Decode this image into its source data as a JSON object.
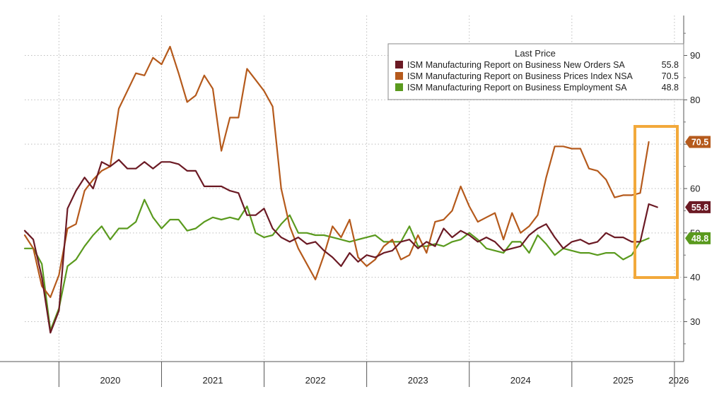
{
  "chart_data": {
    "type": "line",
    "title": "",
    "xlabel": "",
    "ylabel": "",
    "ylim": [
      21,
      99
    ],
    "yticks": [
      30,
      40,
      50,
      60,
      70,
      80,
      90
    ],
    "years": [
      "2020",
      "2021",
      "2022",
      "2023",
      "2024",
      "2025",
      "2026"
    ],
    "x_start": "2019-09",
    "legend": {
      "title": "Last Price",
      "position": "top-right"
    },
    "series": [
      {
        "name": "ISM Manufacturing Report on Business New Orders SA",
        "last_label": "55.8",
        "color": "#6b1a24",
        "values": [
          50.5,
          48.5,
          40.0,
          27.5,
          32.5,
          55.5,
          59.5,
          62.5,
          60.0,
          66.0,
          65.0,
          66.5,
          64.5,
          64.5,
          66.0,
          64.5,
          66.0,
          66.0,
          65.5,
          64.0,
          64.0,
          60.5,
          60.5,
          60.5,
          59.5,
          59.0,
          54.0,
          54.0,
          55.5,
          51.0,
          49.0,
          48.0,
          49.0,
          47.5,
          48.0,
          46.0,
          44.5,
          42.5,
          45.5,
          43.5,
          45.0,
          44.5,
          45.5,
          46.0,
          48.0,
          48.5,
          46.5,
          48.0,
          47.0,
          51.0,
          49.0,
          50.5,
          49.5,
          48.0,
          49.0,
          48.0,
          46.0,
          46.5,
          47.0,
          49.5,
          51.0,
          52.0,
          49.0,
          46.5,
          48.0,
          48.5,
          47.5,
          48.0,
          50.0,
          49.0,
          49.0,
          48.0,
          48.0,
          56.5,
          55.8
        ]
      },
      {
        "name": "ISM Manufacturing Report on Business Prices Index NSA",
        "last_label": "70.5",
        "color": "#b55a1c",
        "values": [
          49.5,
          46.5,
          38.0,
          35.5,
          40.5,
          51.0,
          52.0,
          59.5,
          62.0,
          64.0,
          65.0,
          78.0,
          82.0,
          86.0,
          85.5,
          89.5,
          88.0,
          92.0,
          86.0,
          79.5,
          81.0,
          85.5,
          82.5,
          68.5,
          76.0,
          76.0,
          87.0,
          84.5,
          82.0,
          78.5,
          60.0,
          51.5,
          46.5,
          43.0,
          39.5,
          45.0,
          51.5,
          49.0,
          53.0,
          44.5,
          42.5,
          44.0,
          47.0,
          48.5,
          44.0,
          45.0,
          49.5,
          45.5,
          52.5,
          53.0,
          55.0,
          60.5,
          56.0,
          52.5,
          53.5,
          54.5,
          48.5,
          54.5,
          50.0,
          51.5,
          54.0,
          62.5,
          69.5,
          69.5,
          69.0,
          69.0,
          64.5,
          64.0,
          62.0,
          58.0,
          58.5,
          58.5,
          59.0,
          70.5
        ]
      },
      {
        "name": "ISM Manufacturing Report on Business Employment SA",
        "last_label": "48.8",
        "color": "#5a9a1e",
        "values": [
          46.5,
          46.5,
          43.0,
          28.0,
          33.0,
          42.5,
          44.0,
          47.0,
          49.5,
          51.5,
          48.5,
          51.0,
          51.0,
          52.5,
          57.5,
          53.5,
          51.0,
          53.0,
          53.0,
          50.5,
          51.0,
          52.5,
          53.5,
          53.0,
          53.5,
          53.0,
          56.0,
          50.0,
          49.0,
          49.5,
          52.0,
          54.0,
          50.0,
          50.0,
          49.5,
          49.5,
          49.0,
          48.5,
          48.0,
          48.5,
          49.0,
          49.5,
          48.0,
          48.0,
          48.0,
          51.5,
          47.0,
          47.0,
          47.5,
          47.0,
          48.0,
          48.5,
          50.0,
          48.5,
          46.5,
          46.0,
          45.5,
          48.0,
          48.0,
          45.5,
          49.5,
          47.5,
          45.0,
          46.5,
          46.0,
          45.5,
          45.5,
          45.0,
          45.5,
          45.5,
          44.0,
          45.0,
          48.0,
          48.8
        ]
      }
    ]
  }
}
